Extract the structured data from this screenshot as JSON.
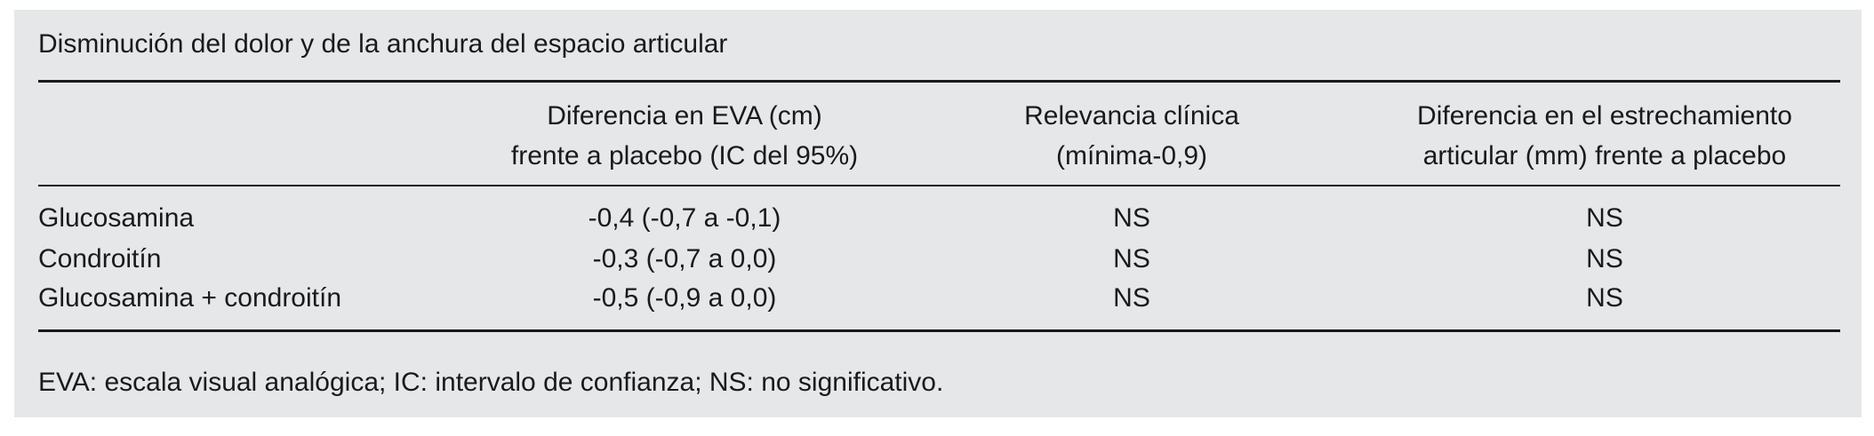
{
  "title": "Disminución del dolor y de la anchura del espacio articular",
  "table": {
    "header": [
      [
        "Diferencia en EVA (cm)",
        "frente a placebo (IC del 95%)"
      ],
      [
        "Relevancia clínica",
        "(mínima-0,9)"
      ],
      [
        "Diferencia en el estrechamiento",
        "articular (mm) frente a placebo"
      ]
    ],
    "rows": [
      [
        "Glucosamina",
        "-0,4 (-0,7 a -0,1)",
        "NS",
        "NS"
      ],
      [
        "Condroitín",
        "-0,3 (-0,7 a 0,0)",
        "NS",
        "NS"
      ],
      [
        "Glucosamina + condroitín",
        "-0,5 (-0,9 a 0,0)",
        "NS",
        "NS"
      ]
    ]
  },
  "footnote": "EVA: escala visual analógica; IC: intervalo de confianza; NS: no significativo."
}
